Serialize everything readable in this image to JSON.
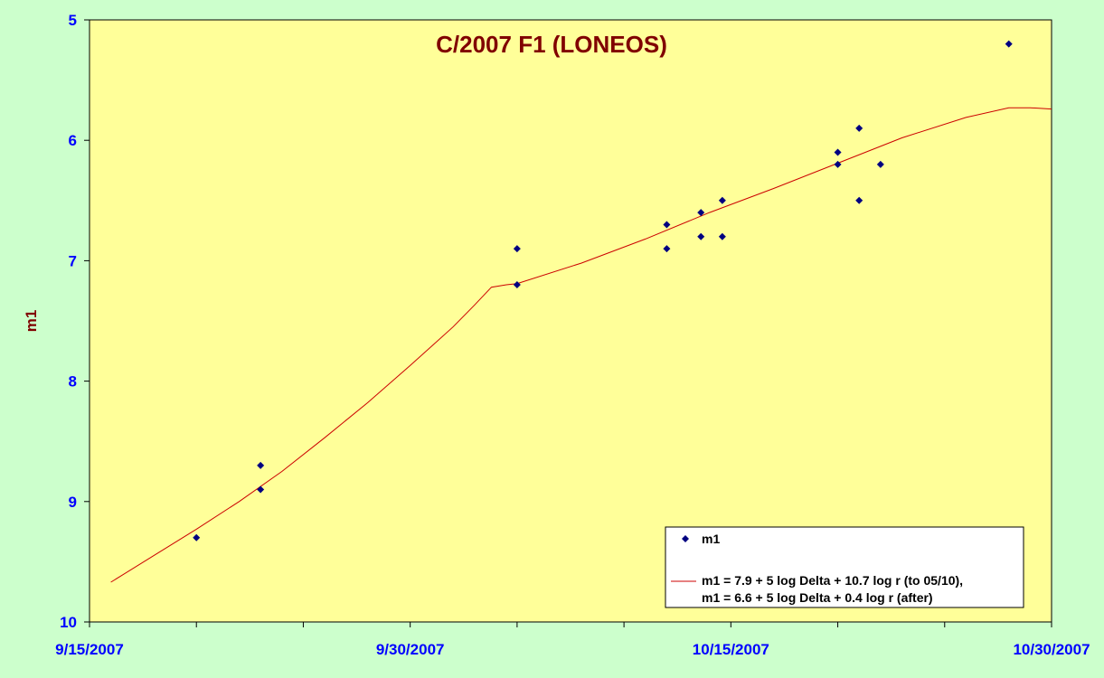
{
  "chart_data": {
    "type": "scatter",
    "title": "C/2007 F1 (LONEOS)",
    "xlabel": "",
    "ylabel": "m1",
    "x_tick_labels": [
      "9/15/2007",
      "9/30/2007",
      "10/15/2007",
      "10/30/2007"
    ],
    "x_range": [
      "2007-09-15",
      "2007-10-30"
    ],
    "y_range": [
      5,
      10
    ],
    "y_reversed": true,
    "y_ticks": [
      5,
      6,
      7,
      8,
      9,
      10
    ],
    "grid": false,
    "legend_position": "bottom-right",
    "colors": {
      "plot_area": "#ffff99",
      "outer_background": "#ccffcc",
      "points": "#000080",
      "curve": "#cc0000",
      "axis_text": "#0000ff",
      "title_text": "#800000"
    },
    "series": [
      {
        "name": "m1",
        "kind": "scatter",
        "marker": "diamond",
        "points": [
          {
            "x": "2007-09-20",
            "y": 9.3
          },
          {
            "x": "2007-09-23",
            "y": 8.7
          },
          {
            "x": "2007-09-23",
            "y": 8.9
          },
          {
            "x": "2007-10-05",
            "y": 6.9
          },
          {
            "x": "2007-10-05",
            "y": 7.2
          },
          {
            "x": "2007-10-12",
            "y": 6.7
          },
          {
            "x": "2007-10-12",
            "y": 6.9
          },
          {
            "x": "2007-10-13.6",
            "y": 6.6
          },
          {
            "x": "2007-10-13.6",
            "y": 6.8
          },
          {
            "x": "2007-10-14.6",
            "y": 6.5
          },
          {
            "x": "2007-10-14.6",
            "y": 6.8
          },
          {
            "x": "2007-10-20",
            "y": 6.1
          },
          {
            "x": "2007-10-20",
            "y": 6.2
          },
          {
            "x": "2007-10-21",
            "y": 5.9
          },
          {
            "x": "2007-10-21",
            "y": 6.5
          },
          {
            "x": "2007-10-22",
            "y": 6.2
          },
          {
            "x": "2007-10-28",
            "y": 5.2
          }
        ]
      },
      {
        "name": "m1 = 7.9 + 5 log Delta + 10.7 log  r (to 05/10),\nm1 = 6.6 + 5 log Delta + 0.4 log r (after)",
        "legend_lines": [
          "m1 = 7.9 + 5 log Delta + 10.7 log  r (to 05/10),",
          "m1 = 6.6 + 5 log Delta + 0.4 log r (after)"
        ],
        "kind": "line",
        "points": [
          {
            "x": "2007-09-16",
            "y": 9.67
          },
          {
            "x": "2007-09-18",
            "y": 9.45
          },
          {
            "x": "2007-09-20",
            "y": 9.23
          },
          {
            "x": "2007-09-22",
            "y": 9.0
          },
          {
            "x": "2007-09-24",
            "y": 8.75
          },
          {
            "x": "2007-09-26",
            "y": 8.47
          },
          {
            "x": "2007-09-28",
            "y": 8.18
          },
          {
            "x": "2007-09-30",
            "y": 7.87
          },
          {
            "x": "2007-10-02",
            "y": 7.55
          },
          {
            "x": "2007-10-03",
            "y": 7.37
          },
          {
            "x": "2007-10-03.8",
            "y": 7.22
          },
          {
            "x": "2007-10-04.5",
            "y": 7.2
          },
          {
            "x": "2007-10-05",
            "y": 7.19
          },
          {
            "x": "2007-10-08",
            "y": 7.02
          },
          {
            "x": "2007-10-11",
            "y": 6.82
          },
          {
            "x": "2007-10-14",
            "y": 6.6
          },
          {
            "x": "2007-10-17",
            "y": 6.4
          },
          {
            "x": "2007-10-20",
            "y": 6.19
          },
          {
            "x": "2007-10-23",
            "y": 5.98
          },
          {
            "x": "2007-10-26",
            "y": 5.81
          },
          {
            "x": "2007-10-28",
            "y": 5.73
          },
          {
            "x": "2007-10-29",
            "y": 5.73
          },
          {
            "x": "2007-10-30",
            "y": 5.74
          }
        ]
      }
    ]
  }
}
